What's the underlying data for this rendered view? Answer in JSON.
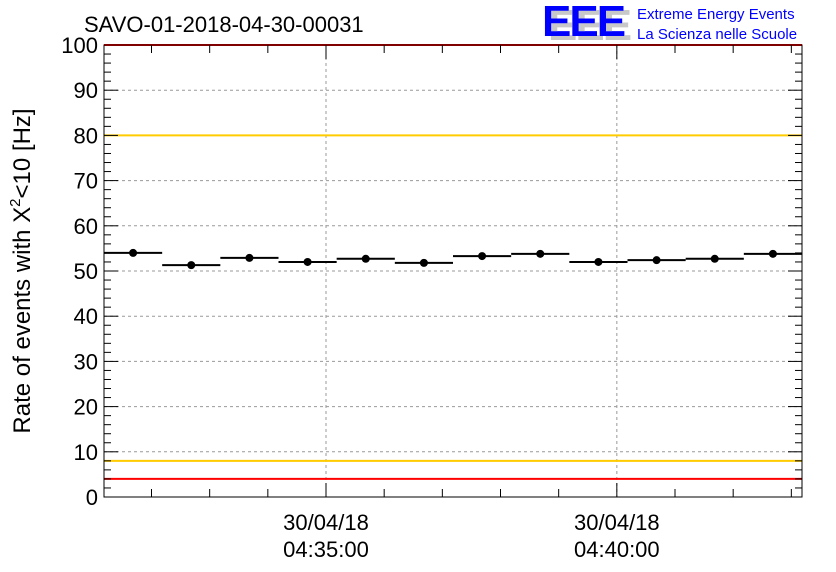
{
  "chart_data": {
    "type": "scatter",
    "title": "SAVO-01-2018-04-30-00031",
    "ylabel_pre": "Rate of events with X",
    "ylabel_sup": "2",
    "ylabel_post": "<10 [Hz]",
    "xlabel": "",
    "ylim": [
      0,
      100
    ],
    "xlim_seconds": [
      16271,
      16991
    ],
    "bin_width_seconds": 60,
    "y_ticks": [
      "0",
      "10",
      "20",
      "30",
      "40",
      "50",
      "60",
      "70",
      "80",
      "90",
      "100"
    ],
    "x_ticks": [
      {
        "t": 16500,
        "date": "30/04/18",
        "time": "04:35:00"
      },
      {
        "t": 16800,
        "date": "30/04/18",
        "time": "04:40:00"
      }
    ],
    "values": [
      54.0,
      51.3,
      52.9,
      52.0,
      52.7,
      51.8,
      53.3,
      53.8,
      52.0,
      52.4,
      52.7,
      53.8
    ],
    "reference_lines": [
      {
        "y": 100,
        "color": "#ff0000"
      },
      {
        "y": 80,
        "color": "#ffcc00"
      },
      {
        "y": 8,
        "color": "#ffcc00"
      },
      {
        "y": 4,
        "color": "#ff0000"
      }
    ],
    "grid": true
  },
  "logo": {
    "letters": "EEE",
    "line1": "Extreme Energy Events",
    "line2": "La Scienza nelle Scuole",
    "color": "#0000ff"
  }
}
